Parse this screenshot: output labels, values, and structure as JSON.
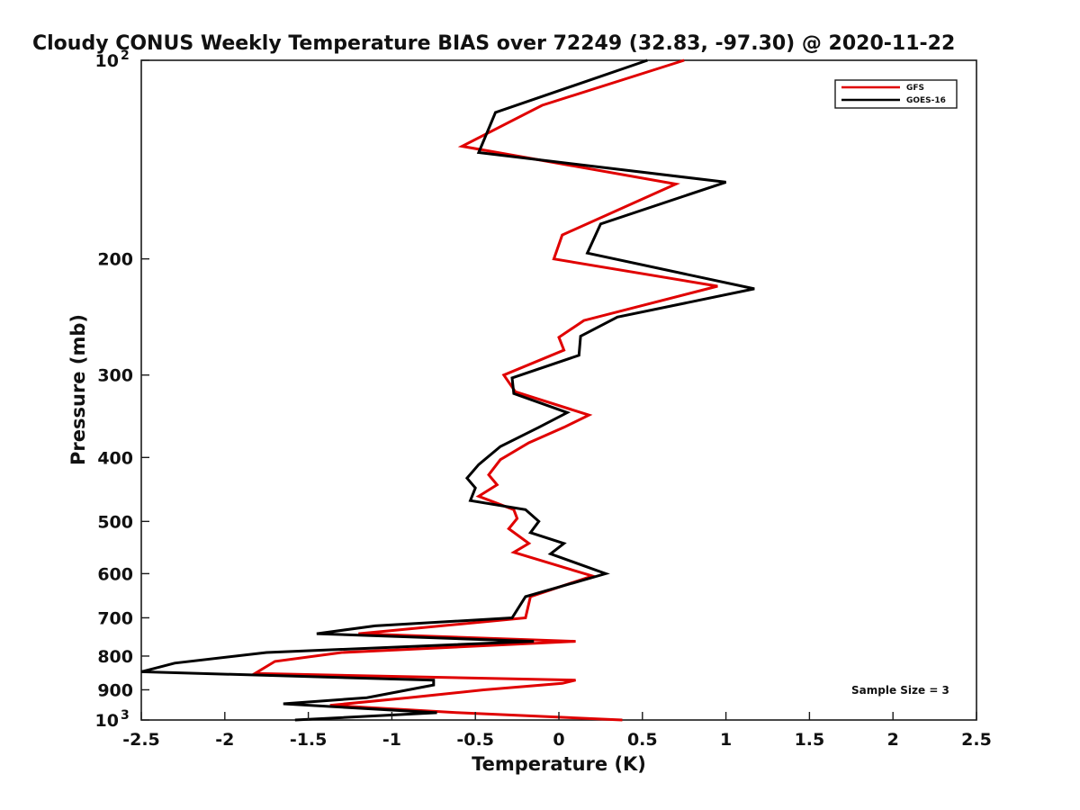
{
  "chart_data": {
    "type": "line",
    "title": "Cloudy CONUS Weekly Temperature BIAS over 72249 (32.83, -97.30) @ 2020-11-22",
    "xlabel": "Temperature (K)",
    "ylabel": "Pressure (mb)",
    "xlim": [
      -2.5,
      2.5
    ],
    "ylim": [
      100,
      1000
    ],
    "y_scale": "log",
    "y_reversed": true,
    "grid": false,
    "legend_position": "top-right",
    "x_ticks": [
      "-2.5",
      "-2",
      "-1.5",
      "-1",
      "-0.5",
      "0",
      "0.5",
      "1",
      "1.5",
      "2",
      "2.5"
    ],
    "x_tick_values": [
      -2.5,
      -2,
      -1.5,
      -1,
      -0.5,
      0,
      0.5,
      1,
      1.5,
      2,
      2.5
    ],
    "y_ticks": [
      {
        "value": 100,
        "base": "10",
        "exp": "2"
      },
      {
        "value": 200,
        "base": "200",
        "exp": ""
      },
      {
        "value": 300,
        "base": "300",
        "exp": ""
      },
      {
        "value": 400,
        "base": "400",
        "exp": ""
      },
      {
        "value": 500,
        "base": "500",
        "exp": ""
      },
      {
        "value": 600,
        "base": "600",
        "exp": ""
      },
      {
        "value": 700,
        "base": "700",
        "exp": ""
      },
      {
        "value": 800,
        "base": "800",
        "exp": ""
      },
      {
        "value": 900,
        "base": "900",
        "exp": ""
      },
      {
        "value": 1000,
        "base": "10",
        "exp": "3"
      }
    ],
    "annotation": "Sample Size = 3",
    "series": [
      {
        "name": "GFS",
        "color": "#e00000",
        "points": [
          [
            0.75,
            100
          ],
          [
            -0.1,
            117
          ],
          [
            -0.58,
            135
          ],
          [
            0.7,
            154
          ],
          [
            0.02,
            184
          ],
          [
            -0.03,
            200
          ],
          [
            0.95,
            220
          ],
          [
            0.15,
            248
          ],
          [
            0.0,
            263
          ],
          [
            0.03,
            275
          ],
          [
            -0.33,
            300
          ],
          [
            -0.26,
            318
          ],
          [
            0.18,
            345
          ],
          [
            0.03,
            360
          ],
          [
            -0.18,
            380
          ],
          [
            -0.35,
            403
          ],
          [
            -0.42,
            425
          ],
          [
            -0.37,
            440
          ],
          [
            -0.48,
            458
          ],
          [
            -0.27,
            480
          ],
          [
            -0.25,
            495
          ],
          [
            -0.3,
            513
          ],
          [
            -0.18,
            540
          ],
          [
            -0.27,
            557
          ],
          [
            0.2,
            605
          ],
          [
            -0.17,
            650
          ],
          [
            -0.2,
            700
          ],
          [
            -1.2,
            740
          ],
          [
            0.1,
            760
          ],
          [
            -1.3,
            790
          ],
          [
            -1.7,
            815
          ],
          [
            -1.82,
            850
          ],
          [
            0.1,
            870
          ],
          [
            0.02,
            880
          ],
          [
            -0.45,
            900
          ],
          [
            -0.9,
            925
          ],
          [
            -1.37,
            950
          ],
          [
            -0.6,
            975
          ],
          [
            0.38,
            1000
          ]
        ]
      },
      {
        "name": "GOES-16",
        "color": "#000000",
        "points": [
          [
            0.53,
            100
          ],
          [
            -0.38,
            120
          ],
          [
            -0.48,
            138
          ],
          [
            1.0,
            153
          ],
          [
            0.25,
            177
          ],
          [
            0.17,
            196
          ],
          [
            1.17,
            222
          ],
          [
            0.35,
            245
          ],
          [
            0.13,
            262
          ],
          [
            0.12,
            280
          ],
          [
            -0.28,
            303
          ],
          [
            -0.27,
            320
          ],
          [
            0.05,
            342
          ],
          [
            -0.12,
            360
          ],
          [
            -0.35,
            385
          ],
          [
            -0.48,
            410
          ],
          [
            -0.55,
            430
          ],
          [
            -0.5,
            445
          ],
          [
            -0.53,
            465
          ],
          [
            -0.2,
            480
          ],
          [
            -0.12,
            500
          ],
          [
            -0.17,
            520
          ],
          [
            0.03,
            540
          ],
          [
            -0.05,
            560
          ],
          [
            0.28,
            600
          ],
          [
            -0.2,
            650
          ],
          [
            -0.28,
            700
          ],
          [
            -1.1,
            720
          ],
          [
            -1.45,
            740
          ],
          [
            -0.15,
            760
          ],
          [
            -1.75,
            790
          ],
          [
            -2.3,
            820
          ],
          [
            -2.5,
            845
          ],
          [
            -0.75,
            870
          ],
          [
            -0.75,
            885
          ],
          [
            -1.15,
            925
          ],
          [
            -1.65,
            945
          ],
          [
            -0.73,
            975
          ],
          [
            -1.58,
            1000
          ]
        ]
      }
    ]
  }
}
